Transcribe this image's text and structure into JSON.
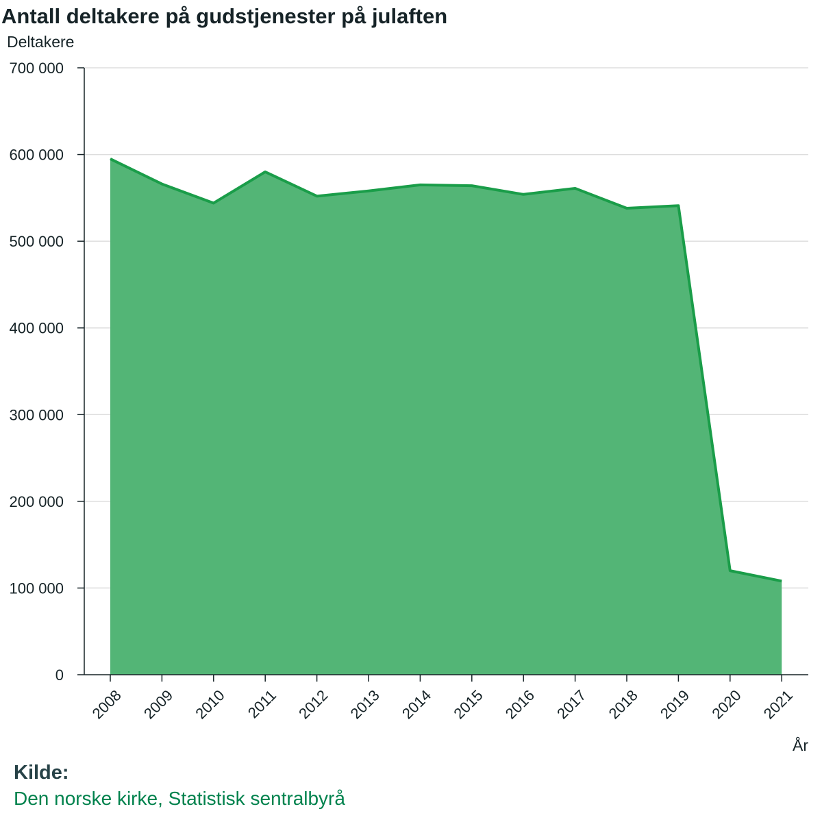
{
  "chart_data": {
    "type": "area",
    "title": "Antall deltakere på gudstjenester på julaften",
    "ylabel": "Deltakere",
    "xlabel": "År",
    "x": [
      "2008",
      "2009",
      "2010",
      "2011",
      "2012",
      "2013",
      "2014",
      "2015",
      "2016",
      "2017",
      "2018",
      "2019",
      "2020",
      "2021"
    ],
    "values": [
      595000,
      566000,
      544000,
      580000,
      552000,
      558000,
      565000,
      564000,
      554000,
      561000,
      538000,
      541000,
      120000,
      108000
    ],
    "ylim": [
      0,
      700000
    ],
    "yticks": [
      0,
      100000,
      200000,
      300000,
      400000,
      500000,
      600000,
      700000
    ],
    "ytick_labels": [
      "0",
      "100 000",
      "200 000",
      "300 000",
      "400 000",
      "500 000",
      "600 000",
      "700 000"
    ],
    "grid": true,
    "colors": {
      "fill": "#53b576",
      "line": "#1a9d49",
      "grid": "#dddddd",
      "axis": "#162327"
    }
  },
  "source": {
    "heading": "Kilde:",
    "text": "Den norske kirke, Statistisk sentralbyrå"
  }
}
